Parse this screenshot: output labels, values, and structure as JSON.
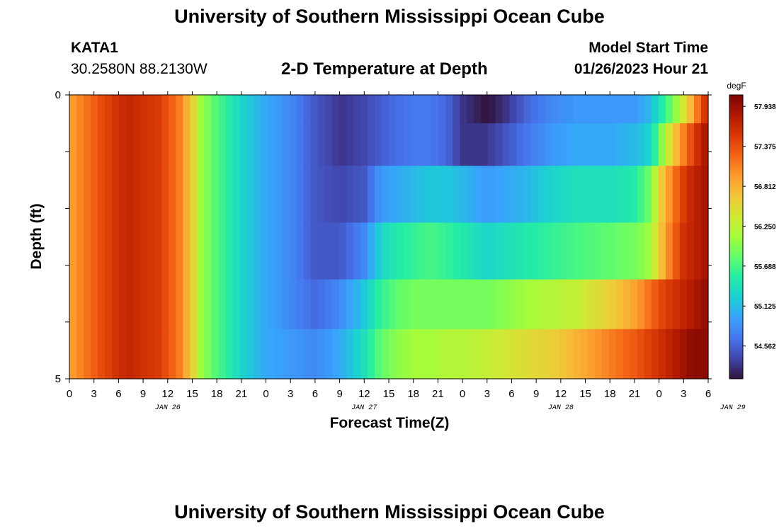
{
  "header": {
    "title": "University of Southern Mississippi Ocean Cube",
    "station_name": "KATA1",
    "station_coords": "30.2580N  88.2130W",
    "plot_title": "2-D Temperature at Depth",
    "model_start_label": "Model Start Time",
    "model_start_value": "01/26/2023 Hour 21"
  },
  "footer": {
    "title": "University of Southern Mississippi Ocean Cube"
  },
  "chart_data": {
    "type": "heatmap",
    "title": "2-D Temperature at Depth",
    "xlabel": "Forecast Time(Z)",
    "ylabel": "Depth (ft)",
    "x_tick_labels": [
      "0",
      "3",
      "6",
      "9",
      "12",
      "15",
      "18",
      "21",
      "0",
      "3",
      "6",
      "9",
      "12",
      "15",
      "18",
      "21",
      "0",
      "3",
      "6",
      "9",
      "12",
      "15",
      "18",
      "21",
      "0",
      "3",
      "6"
    ],
    "x_day_labels": [
      {
        "label": "JAN 26",
        "hour": 12
      },
      {
        "label": "JAN 27",
        "hour": 36
      },
      {
        "label": "JAN 28",
        "hour": 60
      },
      {
        "label": "JAN 29",
        "hour": 81
      }
    ],
    "x_range_hours": [
      0,
      78
    ],
    "y_tick_labels": [
      "0",
      "5"
    ],
    "y_range": [
      0,
      5
    ],
    "depth_levels": [
      0.25,
      0.75,
      1.75,
      2.75,
      3.75,
      4.5
    ],
    "colorbar": {
      "unit": "degF",
      "tick_labels": [
        "57.938",
        "57.375",
        "56.812",
        "56.250",
        "55.688",
        "55.125",
        "54.562"
      ],
      "range": [
        54.1,
        58.1
      ]
    },
    "temperature": [
      {
        "hours": [
          0,
          4,
          7,
          11,
          13.5,
          15,
          16,
          17.5,
          19,
          21,
          24,
          27,
          30,
          33,
          36,
          39,
          42,
          44,
          46,
          48,
          51,
          53.5,
          56,
          59,
          62,
          66,
          69,
          71,
          72,
          73,
          74,
          75,
          76,
          77,
          78
        ],
        "values": [
          56.9,
          57.4,
          57.7,
          57.5,
          57.1,
          56.6,
          56.1,
          55.8,
          55.6,
          55.3,
          55.0,
          54.8,
          54.5,
          54.3,
          54.4,
          54.6,
          54.7,
          54.7,
          54.6,
          54.3,
          54.1,
          54.3,
          54.6,
          54.8,
          54.9,
          54.9,
          54.9,
          55.1,
          55.4,
          55.7,
          56.0,
          56.4,
          56.8,
          57.3,
          57.7
        ]
      },
      {
        "hours": [
          0,
          4,
          7,
          11,
          13.5,
          15,
          16,
          17.5,
          19,
          21,
          24,
          27,
          30,
          33,
          36,
          39,
          42,
          44,
          46,
          48,
          51,
          53.5,
          56,
          59,
          62,
          66,
          69,
          71,
          72,
          73,
          74,
          75,
          76,
          77,
          78
        ],
        "values": [
          56.9,
          57.4,
          57.7,
          57.5,
          57.1,
          56.6,
          56.1,
          55.8,
          55.6,
          55.3,
          55.0,
          54.8,
          54.5,
          54.3,
          54.4,
          54.6,
          54.7,
          54.7,
          54.6,
          54.3,
          54.3,
          54.5,
          54.7,
          54.9,
          55.0,
          55.0,
          55.1,
          55.3,
          55.8,
          56.3,
          56.7,
          57.1,
          57.4,
          57.7,
          57.9
        ]
      },
      {
        "hours": [
          0,
          4,
          7,
          11,
          13.5,
          15,
          16,
          17.5,
          19,
          21,
          24,
          27,
          30,
          33,
          36,
          38,
          40,
          42,
          44,
          46,
          48,
          51,
          53.5,
          56,
          59,
          62,
          66,
          69,
          71,
          72,
          73,
          74,
          75,
          76,
          77,
          78
        ],
        "values": [
          56.9,
          57.4,
          57.7,
          57.5,
          57.1,
          56.6,
          56.1,
          55.8,
          55.6,
          55.3,
          55.0,
          54.8,
          54.5,
          54.4,
          54.5,
          54.9,
          55.0,
          55.1,
          55.2,
          55.2,
          55.1,
          54.9,
          55.0,
          55.1,
          55.3,
          55.4,
          55.4,
          55.5,
          55.9,
          56.5,
          56.9,
          57.2,
          57.5,
          57.7,
          57.8,
          57.9
        ]
      },
      {
        "hours": [
          0,
          4,
          7,
          11,
          13.5,
          15,
          16,
          17.5,
          19,
          21,
          24,
          27,
          30,
          33,
          36,
          38,
          40,
          42,
          44,
          46,
          48,
          51,
          53.5,
          56,
          59,
          62,
          66,
          69,
          71,
          72,
          73,
          74,
          75,
          76,
          77,
          78
        ],
        "values": [
          56.9,
          57.4,
          57.7,
          57.5,
          57.1,
          56.6,
          56.1,
          55.8,
          55.6,
          55.3,
          55.0,
          54.8,
          54.5,
          54.5,
          54.8,
          55.3,
          55.5,
          55.6,
          55.7,
          55.6,
          55.5,
          55.3,
          55.4,
          55.5,
          55.6,
          55.7,
          55.8,
          55.9,
          56.1,
          56.6,
          57.0,
          57.3,
          57.6,
          57.7,
          57.8,
          57.9
        ]
      },
      {
        "hours": [
          0,
          4,
          7,
          11,
          13.5,
          15,
          16,
          17.5,
          19,
          21,
          24,
          27,
          30,
          33,
          36,
          38,
          40,
          42,
          44,
          46,
          48,
          51,
          53.5,
          56,
          59,
          62,
          66,
          69,
          71,
          72,
          73,
          74,
          75,
          76,
          77,
          78
        ],
        "values": [
          56.9,
          57.4,
          57.7,
          57.5,
          57.1,
          56.6,
          56.1,
          55.8,
          55.6,
          55.3,
          55.0,
          54.8,
          54.6,
          54.8,
          55.2,
          55.6,
          55.8,
          55.9,
          55.9,
          55.9,
          55.9,
          55.9,
          56.0,
          56.1,
          56.2,
          56.3,
          56.6,
          56.9,
          57.2,
          57.4,
          57.5,
          57.6,
          57.7,
          57.8,
          57.9,
          58.0
        ]
      },
      {
        "hours": [
          0,
          4,
          7,
          11,
          13.5,
          15,
          16,
          17.5,
          19,
          21,
          24,
          27,
          30,
          33,
          36,
          38,
          40,
          42,
          44,
          46,
          48,
          51,
          53.5,
          56,
          59,
          62,
          66,
          69,
          71,
          72,
          73,
          74,
          75,
          76,
          77,
          78
        ],
        "values": [
          56.9,
          57.4,
          57.7,
          57.5,
          57.1,
          56.6,
          56.1,
          55.8,
          55.6,
          55.3,
          55.0,
          54.9,
          54.8,
          55.0,
          55.4,
          55.8,
          56.0,
          56.1,
          56.1,
          56.2,
          56.2,
          56.3,
          56.4,
          56.5,
          56.6,
          56.8,
          57.1,
          57.3,
          57.5,
          57.6,
          57.7,
          57.8,
          57.9,
          58.0,
          58.0,
          58.0
        ]
      }
    ],
    "colors": {
      "scale": [
        "#30123b",
        "#4145ab",
        "#4675ed",
        "#39a2fc",
        "#1bcfd4",
        "#24eca6",
        "#61fc6c",
        "#a4fc3b",
        "#d1e834",
        "#f3c63a",
        "#fe9b2d",
        "#f36315",
        "#d93806",
        "#b11901",
        "#7a0402"
      ]
    }
  }
}
